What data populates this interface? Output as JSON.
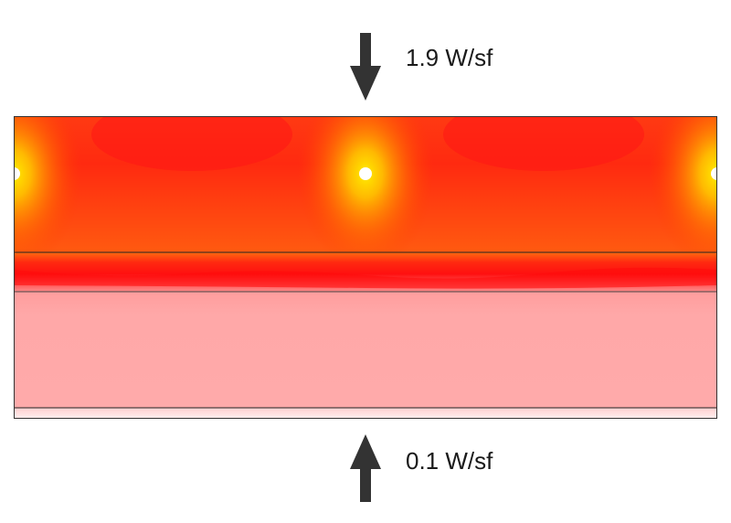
{
  "top_flux": {
    "label": "1.9 W/sf",
    "direction": "down",
    "arrow_color": "#333333"
  },
  "bottom_flux": {
    "label": "0.1 W/sf",
    "direction": "up",
    "arrow_color": "#333333"
  },
  "layers": [
    {
      "name": "heated-slab",
      "fill": "#ff2a10"
    },
    {
      "name": "hot-band",
      "fill": "#ff1010"
    },
    {
      "name": "insulation",
      "fill": "#ffaaaa"
    },
    {
      "name": "base-layer",
      "fill": "#ffe8e8"
    }
  ],
  "heat_sources": {
    "count": 3,
    "color": "#ffffff"
  }
}
